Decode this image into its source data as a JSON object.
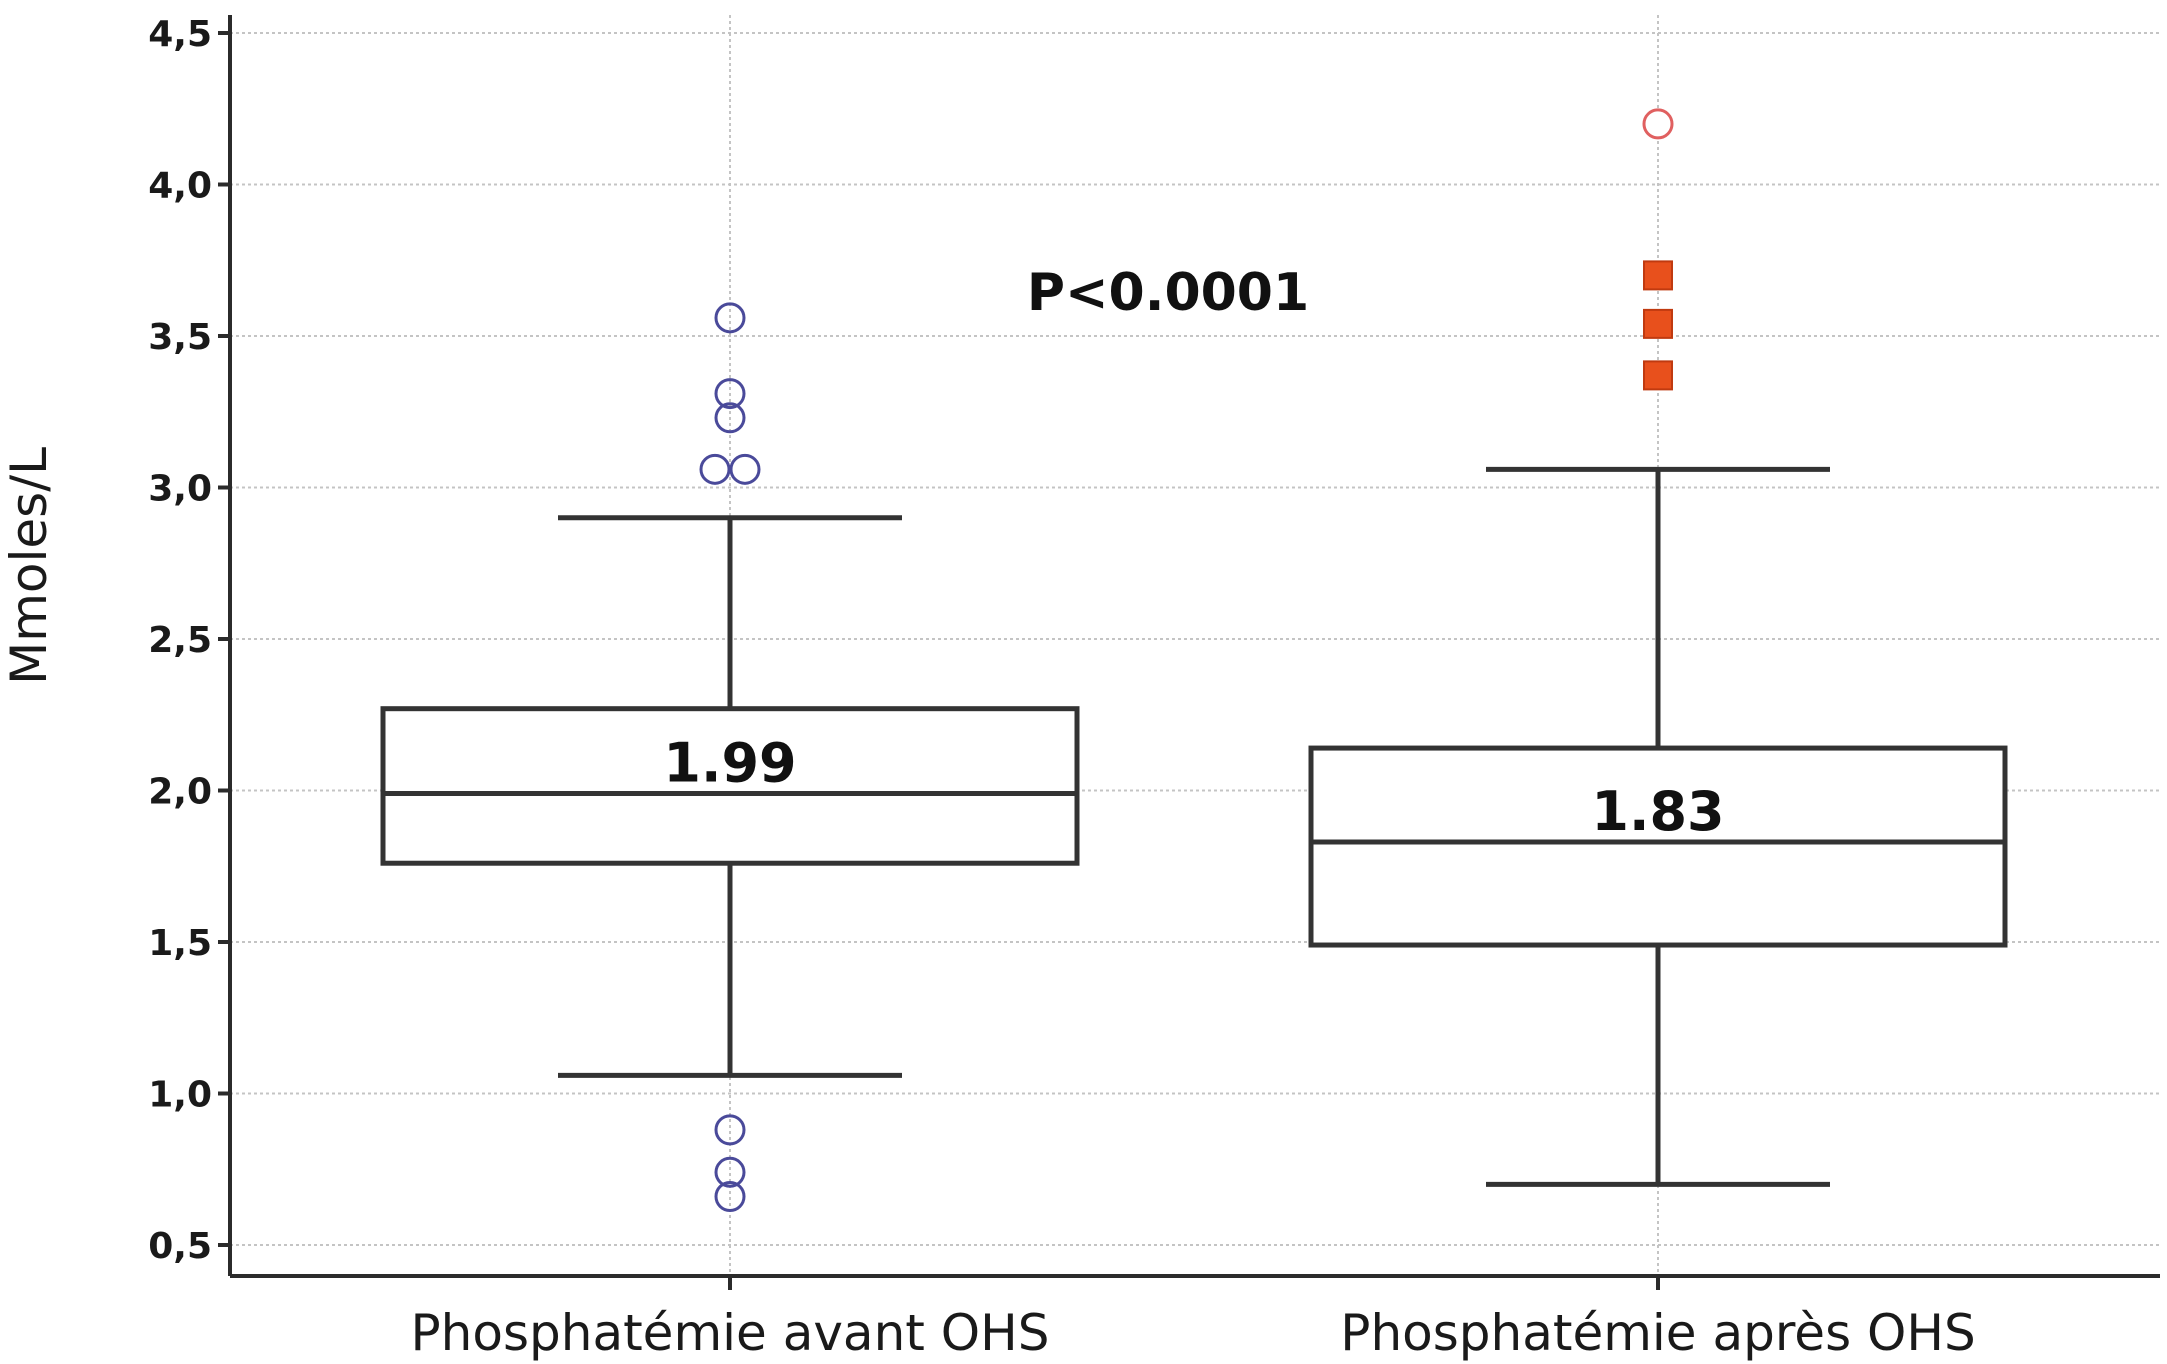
{
  "chart_data": {
    "type": "box",
    "title": "",
    "xlabel": "",
    "ylabel": "Mmoles/L",
    "ylim": [
      0.4,
      4.5
    ],
    "yticks": [
      0.5,
      1.0,
      1.5,
      2.0,
      2.5,
      3.0,
      3.5,
      4.0,
      4.5
    ],
    "ytick_labels": [
      "0,5",
      "1,0",
      "1,5",
      "2,0",
      "2,5",
      "3,0",
      "3,5",
      "4,0",
      "4,5"
    ],
    "grid": true,
    "annotation": "P<0.0001",
    "colors": {
      "outlier_before": "#4a4a9a",
      "outlier_after_far": "#e06060",
      "outlier_after_near": "#e8501c",
      "box": "#333333"
    },
    "groups": [
      {
        "name": "Phosphatémie avant OHS",
        "whisker_low": 1.06,
        "q1": 1.76,
        "median": 1.99,
        "median_label": "1.99",
        "q3": 2.27,
        "whisker_high": 2.9,
        "outliers": [
          {
            "value": 3.56,
            "marker": "circle"
          },
          {
            "value": 3.31,
            "marker": "circle"
          },
          {
            "value": 3.23,
            "marker": "circle"
          },
          {
            "value": 3.06,
            "marker": "circle"
          },
          {
            "value": 3.06,
            "marker": "circle"
          },
          {
            "value": 0.88,
            "marker": "circle"
          },
          {
            "value": 0.74,
            "marker": "circle"
          },
          {
            "value": 0.66,
            "marker": "circle"
          }
        ]
      },
      {
        "name": "Phosphatémie après OHS",
        "whisker_low": 0.7,
        "q1": 1.49,
        "median": 1.83,
        "median_label": "1.83",
        "q3": 2.14,
        "whisker_high": 3.06,
        "outliers": [
          {
            "value": 4.2,
            "marker": "open-circle"
          },
          {
            "value": 3.7,
            "marker": "square"
          },
          {
            "value": 3.54,
            "marker": "square"
          },
          {
            "value": 3.37,
            "marker": "square"
          }
        ]
      }
    ]
  }
}
